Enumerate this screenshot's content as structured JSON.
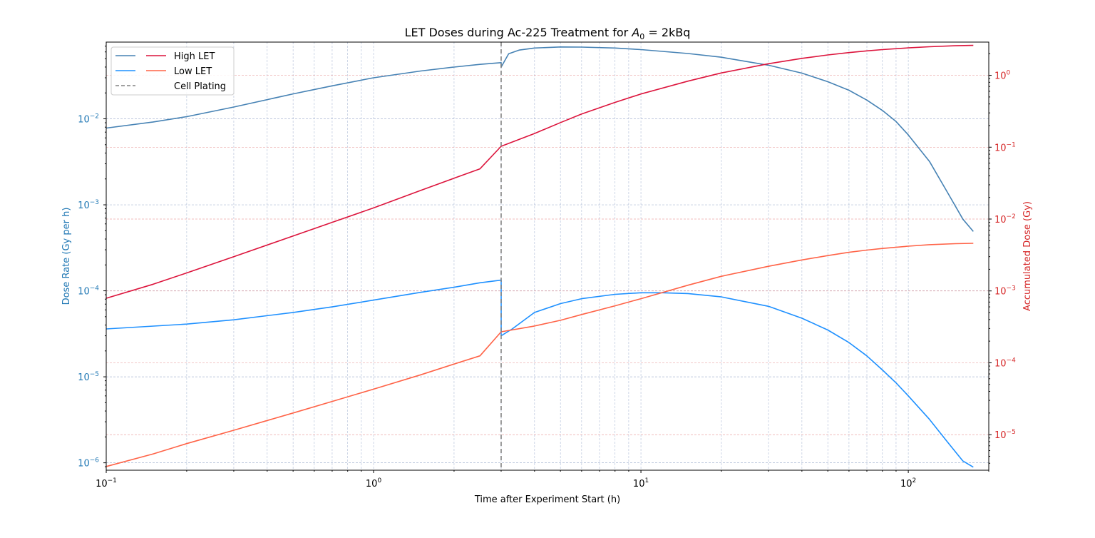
{
  "chart_data": {
    "type": "line",
    "title": "LET Doses during Ac-225 Treatment for",
    "title_math": {
      "base": "A",
      "sub": "0",
      "rest": " = 2kBq"
    },
    "xlabel": "Time after Experiment Start (h)",
    "ylabel_left": "Dose Rate (Gy per h)",
    "ylabel_right": "Accumulated Dose (Gy)",
    "x_scale": "log",
    "y_left_scale": "log",
    "y_right_scale": "log",
    "xlim": [
      0.1,
      200
    ],
    "ylim_left": [
      8.2e-07,
      0.078
    ],
    "ylim_right": [
      3.2e-06,
      2.9
    ],
    "grid": true,
    "legend_placement": "top-left",
    "x_ticks": [
      {
        "value": 0.1,
        "base": "10",
        "exp": "−1"
      },
      {
        "value": 1,
        "base": "10",
        "exp": "0"
      },
      {
        "value": 10,
        "base": "10",
        "exp": "1"
      },
      {
        "value": 100,
        "base": "10",
        "exp": "2"
      }
    ],
    "y_left_ticks": [
      {
        "value": 1e-06,
        "base": "10",
        "exp": "−6"
      },
      {
        "value": 1e-05,
        "base": "10",
        "exp": "−5"
      },
      {
        "value": 0.0001,
        "base": "10",
        "exp": "−4"
      },
      {
        "value": 0.001,
        "base": "10",
        "exp": "−3"
      },
      {
        "value": 0.01,
        "base": "10",
        "exp": "−2"
      }
    ],
    "y_right_ticks": [
      {
        "value": 1e-05,
        "base": "10",
        "exp": "−5"
      },
      {
        "value": 0.0001,
        "base": "10",
        "exp": "−4"
      },
      {
        "value": 0.001,
        "base": "10",
        "exp": "−3"
      },
      {
        "value": 0.01,
        "base": "10",
        "exp": "−2"
      },
      {
        "value": 0.1,
        "base": "10",
        "exp": "−1"
      },
      {
        "value": 1,
        "base": "10",
        "exp": "0"
      }
    ],
    "vline": {
      "name": "Cell Plating",
      "x": 3,
      "color": "#808080"
    },
    "series": [
      {
        "name": "High LET",
        "axis": "left",
        "color": "#4682b4",
        "points": [
          [
            0.1,
            0.0078
          ],
          [
            0.15,
            0.0092
          ],
          [
            0.2,
            0.0106
          ],
          [
            0.3,
            0.0137
          ],
          [
            0.5,
            0.0195
          ],
          [
            0.7,
            0.0242
          ],
          [
            1,
            0.03
          ],
          [
            1.5,
            0.036
          ],
          [
            2,
            0.04
          ],
          [
            2.5,
            0.043
          ],
          [
            3,
            0.045
          ],
          [
            3.0001,
            0.04
          ],
          [
            3.2,
            0.057
          ],
          [
            3.5,
            0.063
          ],
          [
            4,
            0.0665
          ],
          [
            5,
            0.0685
          ],
          [
            6,
            0.0683
          ],
          [
            8,
            0.0665
          ],
          [
            10,
            0.0638
          ],
          [
            15,
            0.0575
          ],
          [
            20,
            0.052
          ],
          [
            30,
            0.042
          ],
          [
            40,
            0.034
          ],
          [
            50,
            0.027
          ],
          [
            60,
            0.0215
          ],
          [
            70,
            0.0165
          ],
          [
            80,
            0.0125
          ],
          [
            90,
            0.0093
          ],
          [
            100,
            0.0065
          ],
          [
            120,
            0.0032
          ],
          [
            140,
            0.0014
          ],
          [
            160,
            0.00068
          ],
          [
            175,
            0.00049
          ]
        ]
      },
      {
        "name": "Low LET",
        "axis": "left",
        "color": "#1e90ff",
        "points": [
          [
            0.1,
            3.6e-05
          ],
          [
            0.2,
            4.1e-05
          ],
          [
            0.3,
            4.6e-05
          ],
          [
            0.5,
            5.6e-05
          ],
          [
            0.7,
            6.5e-05
          ],
          [
            1,
            7.8e-05
          ],
          [
            1.5,
            9.6e-05
          ],
          [
            2,
            0.00011
          ],
          [
            2.5,
            0.000124
          ],
          [
            3,
            0.000133
          ],
          [
            3.0001,
            3e-05
          ],
          [
            3.3,
            3.6e-05
          ],
          [
            4,
            5.6e-05
          ],
          [
            5,
            7.1e-05
          ],
          [
            6,
            8.1e-05
          ],
          [
            8,
            9.1e-05
          ],
          [
            10,
            9.5e-05
          ],
          [
            12,
            9.5e-05
          ],
          [
            15,
            9.3e-05
          ],
          [
            20,
            8.5e-05
          ],
          [
            30,
            6.6e-05
          ],
          [
            40,
            4.8e-05
          ],
          [
            50,
            3.5e-05
          ],
          [
            60,
            2.5e-05
          ],
          [
            70,
            1.75e-05
          ],
          [
            80,
            1.2e-05
          ],
          [
            90,
            8.5e-06
          ],
          [
            100,
            6e-06
          ],
          [
            120,
            3.2e-06
          ],
          [
            140,
            1.75e-06
          ],
          [
            160,
            1.05e-06
          ],
          [
            175,
            8.9e-07
          ]
        ]
      },
      {
        "name": "High LET accumulated",
        "axis": "right",
        "color": "#dc143c",
        "points": [
          [
            0.1,
            0.00079
          ],
          [
            0.15,
            0.00124
          ],
          [
            0.2,
            0.00178
          ],
          [
            0.3,
            0.003
          ],
          [
            0.5,
            0.0058
          ],
          [
            0.7,
            0.009
          ],
          [
            1,
            0.0143
          ],
          [
            1.5,
            0.025
          ],
          [
            2,
            0.037
          ],
          [
            2.5,
            0.05
          ],
          [
            3,
            0.103
          ],
          [
            4,
            0.155
          ],
          [
            5,
            0.22
          ],
          [
            6,
            0.29
          ],
          [
            8,
            0.42
          ],
          [
            10,
            0.55
          ],
          [
            15,
            0.83
          ],
          [
            20,
            1.08
          ],
          [
            30,
            1.45
          ],
          [
            40,
            1.72
          ],
          [
            50,
            1.92
          ],
          [
            60,
            2.07
          ],
          [
            70,
            2.19
          ],
          [
            80,
            2.28
          ],
          [
            100,
            2.41
          ],
          [
            120,
            2.5
          ],
          [
            150,
            2.58
          ],
          [
            175,
            2.61
          ]
        ]
      },
      {
        "name": "Low LET accumulated",
        "axis": "right",
        "color": "#ff6347",
        "points": [
          [
            0.1,
            3.6e-06
          ],
          [
            0.15,
            5.4e-06
          ],
          [
            0.2,
            7.5e-06
          ],
          [
            0.3,
            1.15e-05
          ],
          [
            0.5,
            2e-05
          ],
          [
            0.7,
            2.9e-05
          ],
          [
            1,
            4.3e-05
          ],
          [
            1.5,
            6.8e-05
          ],
          [
            2,
            9.6e-05
          ],
          [
            2.5,
            0.000125
          ],
          [
            3,
            0.00027
          ],
          [
            4,
            0.000325
          ],
          [
            5,
            0.00039
          ],
          [
            6,
            0.00047
          ],
          [
            8,
            0.00062
          ],
          [
            10,
            0.00078
          ],
          [
            15,
            0.0012
          ],
          [
            20,
            0.0016
          ],
          [
            30,
            0.0022
          ],
          [
            40,
            0.0027
          ],
          [
            50,
            0.0031
          ],
          [
            60,
            0.00345
          ],
          [
            70,
            0.0037
          ],
          [
            80,
            0.0039
          ],
          [
            100,
            0.0042
          ],
          [
            120,
            0.0044
          ],
          [
            150,
            0.00455
          ],
          [
            175,
            0.0046
          ]
        ]
      }
    ],
    "legend": [
      {
        "label": "High LET",
        "colors": [
          "#4682b4",
          "#dc143c"
        ],
        "dashed": false
      },
      {
        "label": "Low LET",
        "colors": [
          "#1e90ff",
          "#ff6347"
        ],
        "dashed": false
      },
      {
        "label": "Cell Plating",
        "colors": [
          "#808080"
        ],
        "dashed": true
      }
    ],
    "colors": {
      "left_axis": "#1f77b4",
      "right_axis": "#d62728",
      "grid_blue": "#8c9fc5",
      "grid_red": "#e58a8a"
    }
  }
}
